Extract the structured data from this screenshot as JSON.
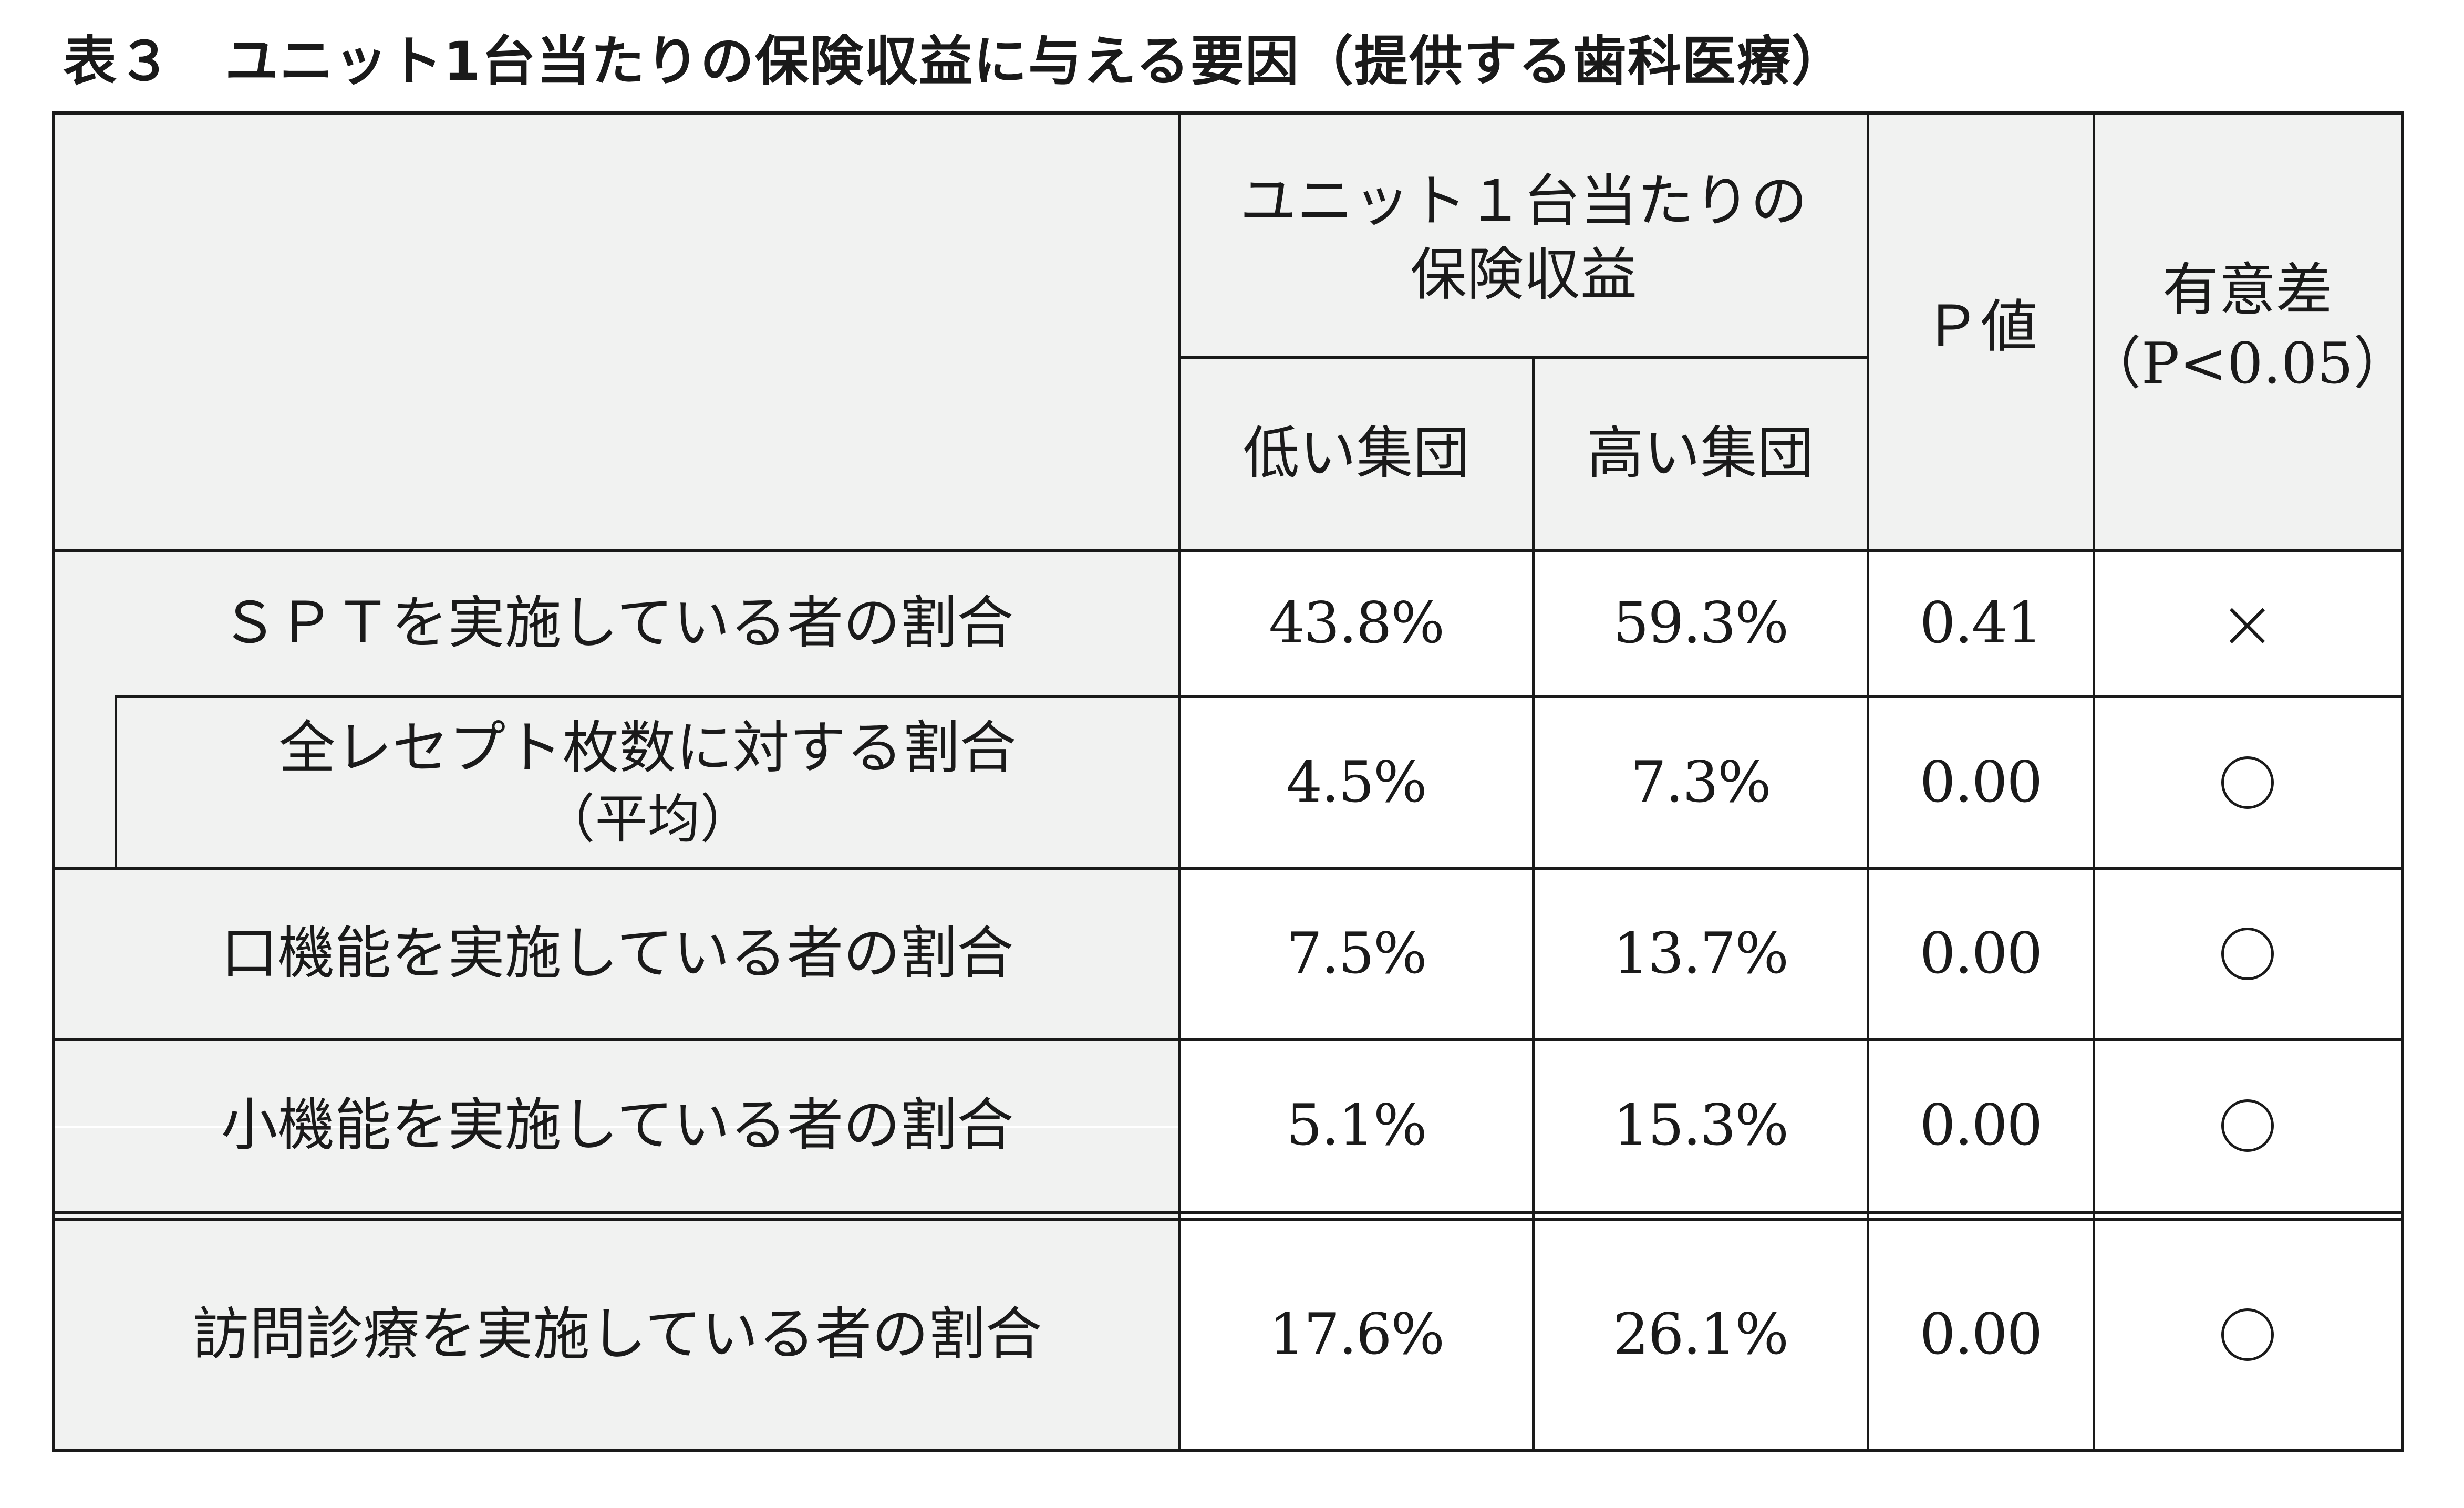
{
  "title": {
    "label": "表３",
    "text": "ユニット1台当たりの保険収益に与える要因（提供する歯科医療）"
  },
  "header": {
    "group_line1": "ユニット１台当たりの",
    "group_line2": "保険収益",
    "low_group": "低い集団",
    "high_group": "高い集団",
    "p_value": "Ｐ値",
    "significance_line1": "有意差",
    "significance_line2": "（P<0.05）"
  },
  "rows": [
    {
      "label": "ＳＰＴを実施している者の割合",
      "low": "43.8%",
      "high": "59.3%",
      "p": "0.41",
      "sig": "×"
    },
    {
      "label": "全レセプト枚数に対する割合",
      "label2": "（平均）",
      "low": "4.5%",
      "high": "7.3%",
      "p": "0.00",
      "sig": "○"
    },
    {
      "label": "口機能を実施している者の割合",
      "low": "7.5%",
      "high": "13.7%",
      "p": "0.00",
      "sig": "○"
    },
    {
      "label": "小機能を実施している者の割合",
      "low": "5.1%",
      "high": "15.3%",
      "p": "0.00",
      "sig": "○"
    },
    {
      "label": "訪問診療を実施している者の割合",
      "low": "17.6%",
      "high": "26.1%",
      "p": "0.00",
      "sig": "○"
    }
  ]
}
